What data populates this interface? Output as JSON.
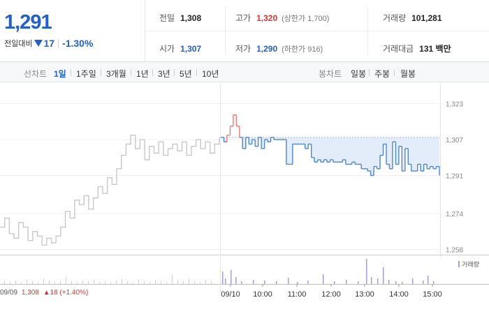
{
  "header": {
    "current_price": "1,291",
    "change_label": "전일대비",
    "change_amount": "17",
    "change_percent": "-1.30%",
    "direction_icon": "down-triangle-icon",
    "prev_close_label": "전일",
    "prev_close": "1,308",
    "open_label": "시가",
    "open": "1,307",
    "high_label": "고가",
    "high": "1,320",
    "upper_limit_label": "(상한가 1,700)",
    "low_label": "저가",
    "low": "1,290",
    "lower_limit_label": "(하한가 916)",
    "volume_label": "거래량",
    "volume": "101,281",
    "amount_label": "거래대금",
    "amount": "131 백만"
  },
  "periods": {
    "line_label": "선차트",
    "line_items": [
      "1일",
      "1주일",
      "3개월",
      "1년",
      "3년",
      "5년",
      "10년"
    ],
    "active": "1일",
    "candle_label": "봉차트",
    "candle_items": [
      "일봉",
      "주봉",
      "월봉"
    ]
  },
  "chart_data": {
    "type": "line",
    "y_ticks": [
      "1,323",
      "1,307",
      "1,291",
      "1,274",
      "1,258"
    ],
    "ylim": [
      1256,
      1326
    ],
    "baseline": 1308,
    "x_tick_labels": [
      "09/10",
      "10:00",
      "11:00",
      "12:00",
      "13:00",
      "14:00",
      "15:00"
    ],
    "previous_day_label": "09/09",
    "previous_day_close": "1,308",
    "previous_day_change": "▲18 (+1.40%)",
    "volume_legend": "거래량",
    "colors": {
      "up": "#f27777",
      "down": "#4a86d4",
      "prev": "#c8c8c8",
      "fill": "#dce8f8",
      "volume": "#a89bd8"
    },
    "previous_day_series": [
      1268,
      1272,
      1265,
      1263,
      1270,
      1268,
      1262,
      1266,
      1264,
      1260,
      1263,
      1261,
      1264,
      1268,
      1275,
      1272,
      1280,
      1278,
      1282,
      1276,
      1281,
      1286,
      1283,
      1290,
      1287,
      1294,
      1300,
      1305,
      1309,
      1303,
      1307,
      1298,
      1304,
      1301,
      1306,
      1300,
      1303,
      1305,
      1302,
      1306,
      1300,
      1304,
      1307,
      1303,
      1306,
      1301,
      1305,
      1308
    ],
    "intraday_series": [
      1308,
      1306,
      1309,
      1313,
      1318,
      1313,
      1308,
      1303,
      1308,
      1305,
      1307,
      1304,
      1308,
      1303,
      1307,
      1306,
      1308,
      1307,
      1307,
      1307,
      1307,
      1296,
      1296,
      1305,
      1305,
      1305,
      1305,
      1303,
      1305,
      1299,
      1297,
      1298,
      1297,
      1298,
      1297,
      1298,
      1297,
      1297,
      1297,
      1298,
      1296,
      1296,
      1297,
      1296,
      1296,
      1294,
      1294,
      1293,
      1291,
      1295,
      1294,
      1300,
      1305,
      1296,
      1294,
      1306,
      1296,
      1304,
      1293,
      1303,
      1296,
      1293,
      1293,
      1296,
      1293,
      1296,
      1294,
      1295,
      1294,
      1295,
      1291
    ]
  }
}
